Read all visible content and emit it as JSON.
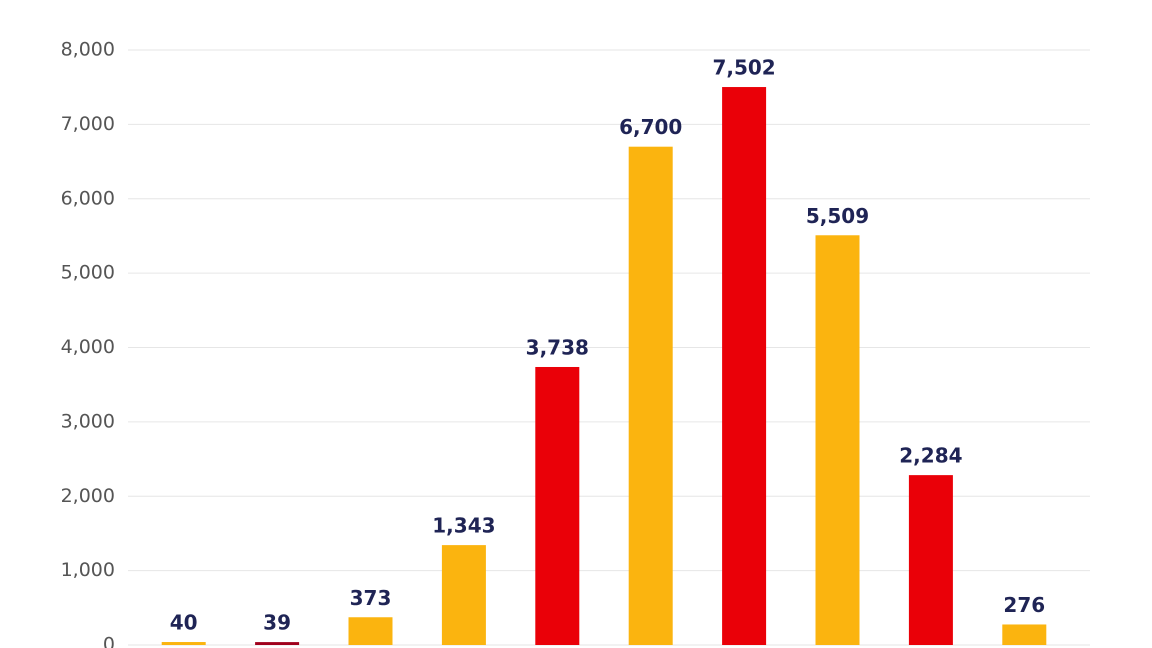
{
  "chart_data": {
    "type": "bar",
    "categories": [
      null,
      null,
      null,
      null,
      null,
      null,
      null,
      null,
      null,
      null
    ],
    "values": [
      40,
      39,
      373,
      1343,
      3738,
      6700,
      7502,
      5509,
      2284,
      276
    ],
    "value_labels": [
      "40",
      "39",
      "373",
      "1,343",
      "3,738",
      "6,700",
      "7,502",
      "5,509",
      "2,284",
      "276"
    ],
    "colors": [
      "#fbb40f",
      "#a0001c",
      "#fbb40f",
      "#fbb40f",
      "#ea0008",
      "#fbb40f",
      "#ea0008",
      "#fbb40f",
      "#ea0008",
      "#fbb40f"
    ],
    "ylim": [
      0,
      8000
    ],
    "yticks": [
      0,
      {
        "value": 1000,
        "label": "1,000"
      },
      {
        "value": 2000,
        "label": "2,000"
      },
      {
        "value": 3000,
        "label": "3,000"
      },
      {
        "value": 4000,
        "label": "4,000"
      },
      {
        "value": 5000,
        "label": "5,000"
      },
      {
        "value": 6000,
        "label": "6,000"
      },
      {
        "value": 7000,
        "label": "7,000"
      },
      {
        "value": 8000,
        "label": "8,000"
      }
    ],
    "grid": true
  }
}
